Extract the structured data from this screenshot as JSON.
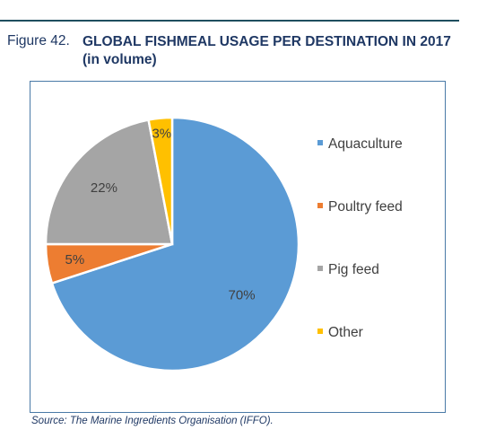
{
  "figure": {
    "label": "Figure 42.",
    "title": "GLOBAL FISHMEAL USAGE PER DESTINATION IN 2017 (in volume)"
  },
  "source": "Source: The Marine Ingredients Organisation (IFFO).",
  "chart_data": {
    "type": "pie",
    "title": "GLOBAL FISHMEAL USAGE PER DESTINATION IN 2017 (in volume)",
    "legend_position": "right",
    "slices": [
      {
        "label": "Aquaculture",
        "value": 70,
        "display": "70%",
        "color": "#5b9bd5"
      },
      {
        "label": "Poultry feed",
        "value": 5,
        "display": "5%",
        "color": "#ed7d31"
      },
      {
        "label": "Pig feed",
        "value": 22,
        "display": "22%",
        "color": "#a5a5a5"
      },
      {
        "label": "Other",
        "value": 3,
        "display": "3%",
        "color": "#ffc000"
      }
    ]
  }
}
